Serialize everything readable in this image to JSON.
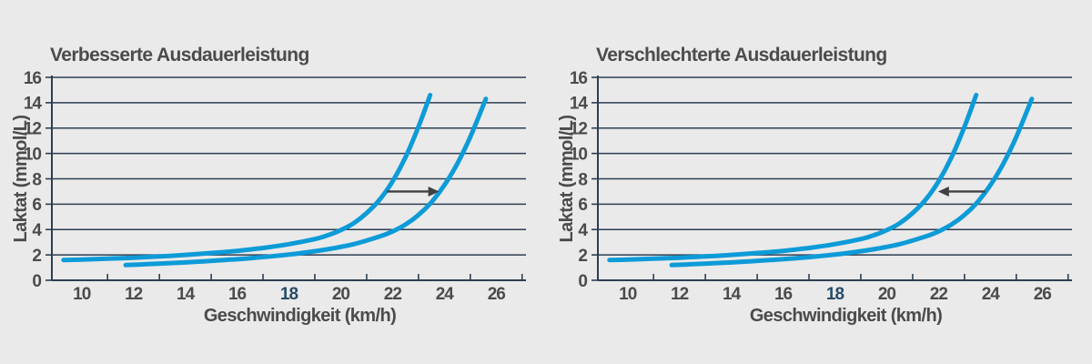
{
  "style": {
    "background": "#eaeaea",
    "curve_color": "#0d9bd8",
    "grid_color": "#2d3e52",
    "axis_color": "#2d3e52",
    "label_color": "#4a4b4d",
    "highlight_tick_color": "#274b66",
    "arrow_color": "#3f4041"
  },
  "chart_data": [
    {
      "type": "line",
      "title": "Verbesserte Ausdauerleistung",
      "xlabel": "Geschwindigkeit (km/h)",
      "ylabel": "Laktat (mmol/L)",
      "xlim": [
        8.85,
        27.15
      ],
      "ylim": [
        0,
        16
      ],
      "x_ticks_labeled": [
        10,
        12,
        14,
        16,
        18,
        20,
        22,
        24,
        26
      ],
      "x_ticks_minor": [
        11,
        13,
        15,
        17,
        19,
        21,
        23,
        25,
        27
      ],
      "y_ticks": [
        0,
        2,
        4,
        6,
        8,
        10,
        12,
        14,
        16
      ],
      "highlighted_x_tick": 18,
      "grid": "horizontal",
      "legend": "none",
      "series": [
        {
          "id": "baseline-lactate-curve",
          "x": [
            9.3,
            10,
            11,
            12,
            13,
            14,
            15,
            16,
            17,
            18,
            19,
            19.5,
            20,
            20.5,
            21,
            21.5,
            22,
            22.5,
            23,
            23.45
          ],
          "y": [
            1.6,
            1.63,
            1.7,
            1.78,
            1.88,
            2.0,
            2.15,
            2.32,
            2.55,
            2.85,
            3.25,
            3.55,
            3.95,
            4.5,
            5.3,
            6.35,
            7.8,
            9.7,
            12.1,
            14.6
          ]
        },
        {
          "id": "shifted-lactate-curve",
          "x": [
            11.7,
            12.5,
            13.5,
            14.5,
            15.5,
            16.5,
            17.5,
            18.5,
            19.5,
            20.5,
            21.5,
            22,
            22.5,
            23,
            23.5,
            24,
            24.5,
            25,
            25.6
          ],
          "y": [
            1.2,
            1.27,
            1.36,
            1.47,
            1.6,
            1.74,
            1.92,
            2.15,
            2.45,
            2.85,
            3.45,
            3.85,
            4.4,
            5.15,
            6.15,
            7.5,
            9.2,
            11.3,
            14.3
          ]
        }
      ],
      "annotation_arrow": {
        "y": 7,
        "from_x": 21.78,
        "to_x": 23.8,
        "direction": "right"
      }
    },
    {
      "type": "line",
      "title": "Verschlechterte Ausdauerleistung",
      "xlabel": "Geschwindigkeit (km/h)",
      "ylabel": "Laktat (mmol/L)",
      "xlim": [
        8.85,
        27.15
      ],
      "ylim": [
        0,
        16
      ],
      "x_ticks_labeled": [
        10,
        12,
        14,
        16,
        18,
        20,
        22,
        24,
        26
      ],
      "x_ticks_minor": [
        11,
        13,
        15,
        17,
        19,
        21,
        23,
        25,
        27
      ],
      "y_ticks": [
        0,
        2,
        4,
        6,
        8,
        10,
        12,
        14,
        16
      ],
      "highlighted_x_tick": 18,
      "grid": "horizontal",
      "legend": "none",
      "series": [
        {
          "id": "baseline-lactate-curve",
          "x": [
            9.3,
            10,
            11,
            12,
            13,
            14,
            15,
            16,
            17,
            18,
            19,
            19.5,
            20,
            20.5,
            21,
            21.5,
            22,
            22.5,
            23,
            23.45
          ],
          "y": [
            1.6,
            1.63,
            1.7,
            1.78,
            1.88,
            2.0,
            2.15,
            2.32,
            2.55,
            2.85,
            3.25,
            3.55,
            3.95,
            4.5,
            5.3,
            6.35,
            7.8,
            9.7,
            12.1,
            14.6
          ]
        },
        {
          "id": "shifted-lactate-curve",
          "x": [
            11.7,
            12.5,
            13.5,
            14.5,
            15.5,
            16.5,
            17.5,
            18.5,
            19.5,
            20.5,
            21.5,
            22,
            22.5,
            23,
            23.5,
            24,
            24.5,
            25,
            25.6
          ],
          "y": [
            1.2,
            1.27,
            1.36,
            1.47,
            1.6,
            1.74,
            1.92,
            2.15,
            2.45,
            2.85,
            3.45,
            3.85,
            4.4,
            5.15,
            6.15,
            7.5,
            9.2,
            11.3,
            14.3
          ]
        }
      ],
      "annotation_arrow": {
        "y": 7,
        "from_x": 23.8,
        "to_x": 21.98,
        "direction": "left"
      }
    }
  ]
}
